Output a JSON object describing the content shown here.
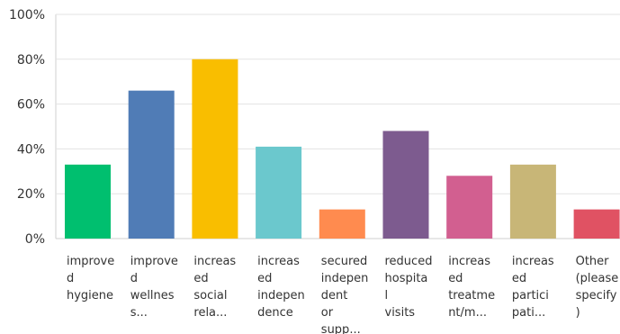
{
  "chart_data": {
    "type": "bar",
    "title": "",
    "xlabel": "",
    "ylabel": "",
    "ylim": [
      0,
      100
    ],
    "yticks": [
      "0%",
      "20%",
      "40%",
      "60%",
      "80%",
      "100%"
    ],
    "ytick_values": [
      0,
      20,
      40,
      60,
      80,
      100
    ],
    "grid": true,
    "legend": "none",
    "categories": [
      [
        "improve",
        "d",
        "hygiene"
      ],
      [
        "improve",
        "d",
        "wellnes",
        "s..."
      ],
      [
        "increas",
        "ed",
        "social",
        "rela..."
      ],
      [
        "increas",
        "ed",
        "indepen",
        "dence"
      ],
      [
        "secured",
        "indepen",
        "dent",
        "or",
        "supp..."
      ],
      [
        "reduced",
        "hospita",
        "l",
        "visits"
      ],
      [
        "increas",
        "ed",
        "treatme",
        "nt/m..."
      ],
      [
        "increas",
        "ed",
        "partici",
        "pati..."
      ],
      [
        "Other",
        "(please",
        "specify",
        ")"
      ]
    ],
    "values": [
      33,
      66,
      80,
      41,
      13,
      48,
      28,
      33,
      13
    ],
    "colors": [
      "#00bf6f",
      "#507cb6",
      "#f9be00",
      "#6bc8cd",
      "#ff8b4f",
      "#7d5b8f",
      "#d25f90",
      "#c8b677",
      "#e05263"
    ]
  }
}
